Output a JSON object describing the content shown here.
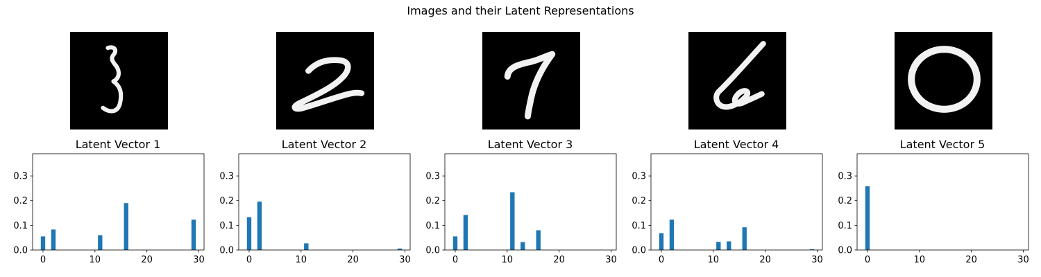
{
  "figure": {
    "title": "Images and their Latent Representations"
  },
  "colors": {
    "bar": "#1f77b4",
    "image_background": "#000000",
    "stroke": "#f2f2f2"
  },
  "images": [
    {
      "digit": "3"
    },
    {
      "digit": "2"
    },
    {
      "digit": "7"
    },
    {
      "digit": "6"
    },
    {
      "digit": "0"
    }
  ],
  "chart_data": [
    {
      "type": "bar",
      "title": "Latent Vector 1",
      "xlabel": "",
      "ylabel": "",
      "xlim": [
        -2,
        31
      ],
      "ylim": [
        0,
        0.39
      ],
      "xticks": [
        0,
        10,
        20,
        30
      ],
      "yticks": [
        0.0,
        0.1,
        0.2,
        0.3
      ],
      "x": [
        0,
        2,
        11,
        16,
        29
      ],
      "values": [
        0.055,
        0.083,
        0.06,
        0.19,
        0.123
      ]
    },
    {
      "type": "bar",
      "title": "Latent Vector 2",
      "xlabel": "",
      "ylabel": "",
      "xlim": [
        -2,
        31
      ],
      "ylim": [
        0,
        0.39
      ],
      "xticks": [
        0,
        10,
        20,
        30
      ],
      "yticks": [
        0.0,
        0.1,
        0.2,
        0.3
      ],
      "x": [
        0,
        2,
        11,
        29
      ],
      "values": [
        0.133,
        0.196,
        0.027,
        0.006
      ]
    },
    {
      "type": "bar",
      "title": "Latent Vector 3",
      "xlabel": "",
      "ylabel": "",
      "xlim": [
        -2,
        31
      ],
      "ylim": [
        0,
        0.39
      ],
      "xticks": [
        0,
        10,
        20,
        30
      ],
      "yticks": [
        0.0,
        0.1,
        0.2,
        0.3
      ],
      "x": [
        0,
        2,
        11,
        13,
        16
      ],
      "values": [
        0.055,
        0.142,
        0.234,
        0.032,
        0.08
      ]
    },
    {
      "type": "bar",
      "title": "Latent Vector 4",
      "xlabel": "",
      "ylabel": "",
      "xlim": [
        -2,
        31
      ],
      "ylim": [
        0,
        0.39
      ],
      "xticks": [
        0,
        10,
        20,
        30
      ],
      "yticks": [
        0.0,
        0.1,
        0.2,
        0.3
      ],
      "x": [
        0,
        2,
        11,
        13,
        16,
        29
      ],
      "values": [
        0.068,
        0.123,
        0.033,
        0.035,
        0.092,
        0.003
      ]
    },
    {
      "type": "bar",
      "title": "Latent Vector 5",
      "xlabel": "",
      "ylabel": "",
      "xlim": [
        -2,
        31
      ],
      "ylim": [
        0,
        0.39
      ],
      "xticks": [
        0,
        10,
        20,
        30
      ],
      "yticks": [
        0.0,
        0.1,
        0.2,
        0.3
      ],
      "x": [
        0
      ],
      "values": [
        0.258
      ]
    }
  ]
}
